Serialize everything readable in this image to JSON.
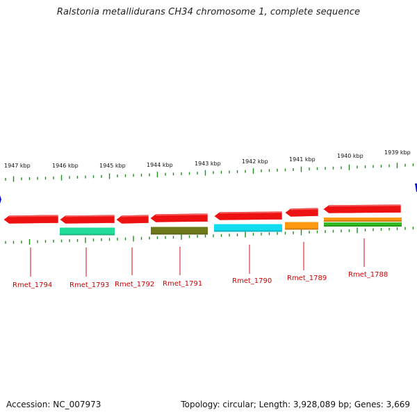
{
  "title": "Ralstonia metallidurans CH34 chromosome 1, complete sequence",
  "footer": {
    "accession": "Accession: NC_007973",
    "topology": "Topology: circular; Length: 3,928,089 bp; Genes: 3,669"
  },
  "colors": {
    "backbone": "#8a8a8a",
    "tick": "#1f8c1f",
    "label": "#cc0000",
    "leader": "#d01010",
    "marker": "#1010d0"
  },
  "kbp_labels": [
    "1947 kbp",
    "1946 kbp",
    "1945 kbp",
    "1944 kbp",
    "1943 kbp",
    "1942 kbp",
    "1941 kbp",
    "1940 kbp",
    "1939 kbp"
  ],
  "genes": [
    {
      "id": "Rmet_1794",
      "strand": "reverse",
      "color": "#ee1111"
    },
    {
      "id": "Rmet_1793",
      "strand": "reverse",
      "color": "#ee1111",
      "sub": [
        {
          "color": "#22dd99"
        }
      ]
    },
    {
      "id": "Rmet_1792",
      "strand": "reverse",
      "color": "#ee1111"
    },
    {
      "id": "Rmet_1791",
      "strand": "reverse",
      "color": "#ee1111",
      "sub": [
        {
          "color": "#6e7a1a"
        }
      ]
    },
    {
      "id": "Rmet_1790",
      "strand": "reverse",
      "color": "#ee1111",
      "sub": [
        {
          "color": "#11ddee"
        }
      ]
    },
    {
      "id": "Rmet_1789",
      "strand": "reverse",
      "color": "#ee1111",
      "sub": [
        {
          "color": "#ff9911"
        }
      ]
    },
    {
      "id": "Rmet_1788",
      "strand": "reverse",
      "color": "#ee1111",
      "sub": [
        {
          "color": "#ff9911"
        },
        {
          "color": "#33bb22"
        }
      ]
    }
  ]
}
